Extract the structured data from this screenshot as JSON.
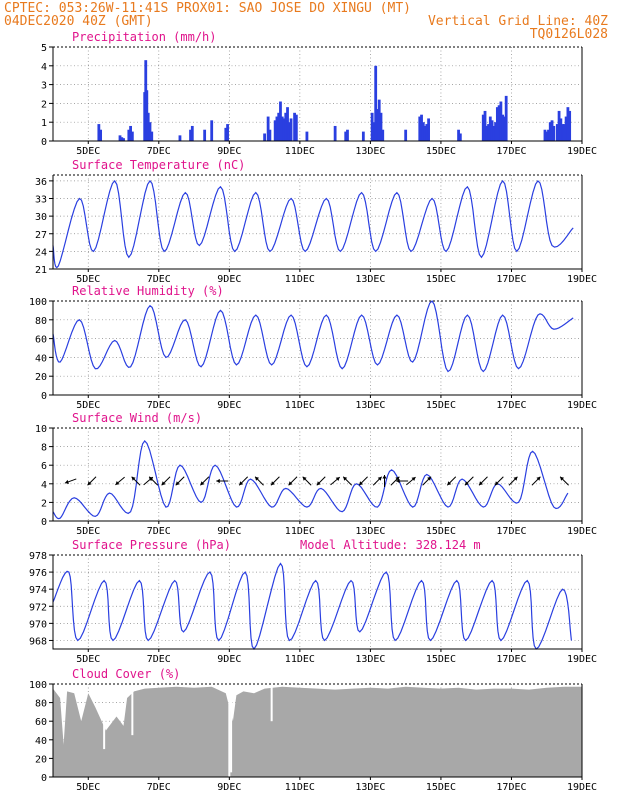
{
  "header": {
    "line1_left": "CPTEC:  053:26W-11:41S   PROX01: SAO JOSE DO XINGU (MT)",
    "line2_left": "04DEC2020 40Z (GMT)",
    "line2_right": "Vertical Grid Line: 40Z",
    "line3_right": "TQ0126L028",
    "model_altitude": "Model Altitude: 328.124 m"
  },
  "colors": {
    "header_text": "#e87a1e",
    "panel_title": "#e0148c",
    "series_line": "#2a3fe0",
    "cloud_fill": "#a8a8a8",
    "wind_arrow": "#000000"
  },
  "x_axis": {
    "start": 4.0,
    "end": 19.0,
    "unit": "days (DEC 2020)",
    "tick_values": [
      5,
      7,
      9,
      11,
      13,
      15,
      17,
      19
    ],
    "tick_labels": [
      "5DEC",
      "7DEC",
      "9DEC",
      "11DEC",
      "13DEC",
      "15DEC",
      "17DEC",
      "19DEC"
    ]
  },
  "chart_data": [
    {
      "id": "precip",
      "type": "bar",
      "title": "Precipitation (mm/h)",
      "ylim": [
        0,
        5
      ],
      "yticks": [
        0,
        1,
        2,
        3,
        4,
        5
      ],
      "grid": true,
      "bars": [
        [
          5.3,
          0.9
        ],
        [
          5.35,
          0.6
        ],
        [
          5.9,
          0.3
        ],
        [
          5.95,
          0.2
        ],
        [
          6.0,
          0.15
        ],
        [
          6.15,
          0.6
        ],
        [
          6.2,
          0.8
        ],
        [
          6.25,
          0.5
        ],
        [
          6.6,
          2.6
        ],
        [
          6.63,
          4.3
        ],
        [
          6.66,
          2.7
        ],
        [
          6.7,
          1.5
        ],
        [
          6.75,
          1.0
        ],
        [
          6.8,
          0.5
        ],
        [
          7.6,
          0.3
        ],
        [
          7.9,
          0.6
        ],
        [
          7.95,
          0.8
        ],
        [
          8.3,
          0.6
        ],
        [
          8.5,
          1.1
        ],
        [
          8.9,
          0.7
        ],
        [
          8.95,
          0.9
        ],
        [
          10.0,
          0.4
        ],
        [
          10.1,
          1.3
        ],
        [
          10.15,
          0.6
        ],
        [
          10.3,
          1.1
        ],
        [
          10.35,
          1.3
        ],
        [
          10.4,
          1.5
        ],
        [
          10.45,
          2.1
        ],
        [
          10.5,
          1.3
        ],
        [
          10.55,
          1.2
        ],
        [
          10.6,
          1.5
        ],
        [
          10.65,
          1.8
        ],
        [
          10.7,
          1.0
        ],
        [
          10.75,
          1.2
        ],
        [
          10.85,
          1.5
        ],
        [
          10.9,
          1.4
        ],
        [
          11.2,
          0.5
        ],
        [
          12.0,
          0.8
        ],
        [
          12.3,
          0.5
        ],
        [
          12.35,
          0.6
        ],
        [
          12.8,
          0.5
        ],
        [
          13.05,
          1.5
        ],
        [
          13.1,
          1.0
        ],
        [
          13.15,
          4.0
        ],
        [
          13.2,
          1.7
        ],
        [
          13.25,
          2.2
        ],
        [
          13.3,
          1.5
        ],
        [
          13.35,
          0.6
        ],
        [
          14.0,
          0.6
        ],
        [
          14.4,
          1.3
        ],
        [
          14.45,
          1.4
        ],
        [
          14.5,
          1.0
        ],
        [
          14.55,
          0.8
        ],
        [
          14.6,
          0.9
        ],
        [
          14.65,
          1.2
        ],
        [
          15.5,
          0.6
        ],
        [
          15.55,
          0.4
        ],
        [
          16.2,
          1.4
        ],
        [
          16.25,
          1.6
        ],
        [
          16.3,
          0.8
        ],
        [
          16.35,
          0.9
        ],
        [
          16.4,
          1.3
        ],
        [
          16.45,
          1.1
        ],
        [
          16.5,
          0.8
        ],
        [
          16.55,
          1.0
        ],
        [
          16.6,
          1.8
        ],
        [
          16.65,
          1.9
        ],
        [
          16.7,
          2.1
        ],
        [
          16.75,
          1.4
        ],
        [
          16.8,
          1.3
        ],
        [
          16.85,
          2.4
        ],
        [
          17.95,
          0.6
        ],
        [
          18.0,
          0.5
        ],
        [
          18.05,
          0.6
        ],
        [
          18.1,
          1.0
        ],
        [
          18.15,
          1.1
        ],
        [
          18.2,
          0.8
        ],
        [
          18.3,
          0.9
        ],
        [
          18.35,
          1.6
        ],
        [
          18.4,
          1.2
        ],
        [
          18.45,
          0.9
        ],
        [
          18.5,
          0.9
        ],
        [
          18.55,
          1.3
        ],
        [
          18.6,
          1.8
        ],
        [
          18.65,
          1.6
        ]
      ]
    },
    {
      "id": "temp",
      "type": "line",
      "title": "Surface Temperature (nC)",
      "ylim": [
        21,
        37
      ],
      "yticks": [
        21,
        24,
        27,
        30,
        33,
        36
      ],
      "grid": true,
      "min_time_frac": 0.15,
      "peak_time_frac": 0.75,
      "x_start": 4.0,
      "y_start": 25.0,
      "daily": [
        [
          4,
          21.5,
          33.0
        ],
        [
          5,
          24.0,
          36.0
        ],
        [
          6,
          23.0,
          36.0
        ],
        [
          7,
          24.0,
          34.0
        ],
        [
          8,
          25.0,
          35.0
        ],
        [
          9,
          24.0,
          34.0
        ],
        [
          10,
          24.0,
          33.0
        ],
        [
          11,
          24.0,
          33.0
        ],
        [
          12,
          24.0,
          34.0
        ],
        [
          13,
          24.0,
          34.0
        ],
        [
          14,
          24.0,
          33.0
        ],
        [
          15,
          24.0,
          35.0
        ],
        [
          16,
          23.0,
          36.0
        ],
        [
          17,
          24.0,
          36.0
        ],
        [
          18,
          25.0,
          28.0
        ]
      ]
    },
    {
      "id": "rh",
      "type": "line",
      "title": "Relative Humidity (%)",
      "ylim": [
        0,
        100
      ],
      "yticks": [
        0,
        20,
        40,
        60,
        80,
        100
      ],
      "grid": true,
      "min_time_frac": 0.75,
      "peak_time_frac": 0.2,
      "x_start": 4.0,
      "y_start": 65.0,
      "daily": [
        [
          4,
          80.0,
          35.0
        ],
        [
          5,
          58.0,
          28.0
        ],
        [
          6,
          95.0,
          30.0
        ],
        [
          7,
          80.0,
          40.0
        ],
        [
          8,
          90.0,
          30.0
        ],
        [
          9,
          85.0,
          32.0
        ],
        [
          10,
          85.0,
          32.0
        ],
        [
          11,
          85.0,
          30.0
        ],
        [
          12,
          85.0,
          28.0
        ],
        [
          13,
          85.0,
          32.0
        ],
        [
          14,
          100.0,
          35.0
        ],
        [
          15,
          85.0,
          25.0
        ],
        [
          16,
          85.0,
          25.0
        ],
        [
          17,
          85.0,
          28.0
        ],
        [
          18,
          82.0,
          70.0
        ]
      ]
    },
    {
      "id": "wind",
      "type": "line",
      "title": "Surface Wind (m/s)",
      "ylim": [
        0,
        10
      ],
      "yticks": [
        0,
        2,
        4,
        6,
        8,
        10
      ],
      "grid": true,
      "min_time_frac": 0.2,
      "peak_time_frac": 0.6,
      "x_start": 4.0,
      "y_start": 1.0,
      "daily": [
        [
          4,
          0.3,
          2.5
        ],
        [
          5,
          0.5,
          3.0
        ],
        [
          6,
          1.0,
          8.6
        ],
        [
          7,
          1.5,
          6.0
        ],
        [
          8,
          2.0,
          6.0
        ],
        [
          9,
          1.5,
          4.5
        ],
        [
          10,
          1.5,
          3.5
        ],
        [
          11,
          1.5,
          3.5
        ],
        [
          12,
          1.0,
          4.0
        ],
        [
          13,
          1.5,
          5.5
        ],
        [
          14,
          1.5,
          5.0
        ],
        [
          15,
          1.5,
          4.5
        ],
        [
          16,
          1.5,
          4.0
        ],
        [
          17,
          2.0,
          7.5
        ],
        [
          18,
          1.5,
          3.0
        ]
      ],
      "arrows_y": 4.3,
      "arrows": [
        [
          4.5,
          200
        ],
        [
          5.1,
          225
        ],
        [
          5.9,
          220
        ],
        [
          6.35,
          135
        ],
        [
          6.7,
          40
        ],
        [
          6.85,
          135
        ],
        [
          7.2,
          225
        ],
        [
          7.6,
          225
        ],
        [
          8.3,
          225
        ],
        [
          8.8,
          180
        ],
        [
          9.4,
          225
        ],
        [
          9.85,
          135
        ],
        [
          10.3,
          225
        ],
        [
          10.8,
          225
        ],
        [
          11.2,
          135
        ],
        [
          11.6,
          225
        ],
        [
          12.0,
          40
        ],
        [
          12.35,
          135
        ],
        [
          12.8,
          225
        ],
        [
          13.2,
          45
        ],
        [
          13.4,
          90
        ],
        [
          13.7,
          45
        ],
        [
          13.9,
          180
        ],
        [
          14.15,
          40
        ],
        [
          14.6,
          45
        ],
        [
          15.3,
          225
        ],
        [
          15.8,
          225
        ],
        [
          16.2,
          225
        ],
        [
          16.65,
          225
        ],
        [
          17.05,
          45
        ],
        [
          17.7,
          45
        ],
        [
          18.5,
          135
        ]
      ]
    },
    {
      "id": "press",
      "type": "line",
      "title": "Surface Pressure (hPa)",
      "ylim": [
        967,
        978
      ],
      "yticks": [
        968,
        970,
        972,
        974,
        976,
        978
      ],
      "grid": true,
      "min_time_frac": 0.7,
      "peak_time_frac": 0.45,
      "x_start": 4.0,
      "y_start": 972.5,
      "daily": [
        [
          4,
          968.0,
          976.0
        ],
        [
          5,
          968.0,
          975.0
        ],
        [
          6,
          968.0,
          975.0
        ],
        [
          7,
          969.0,
          975.0
        ],
        [
          8,
          968.0,
          976.0
        ],
        [
          9,
          967.0,
          976.0
        ],
        [
          10,
          968.0,
          977.0
        ],
        [
          11,
          968.0,
          975.0
        ],
        [
          12,
          969.0,
          975.0
        ],
        [
          13,
          968.0,
          976.0
        ],
        [
          14,
          968.0,
          975.0
        ],
        [
          15,
          968.0,
          975.0
        ],
        [
          16,
          968.0,
          975.0
        ],
        [
          17,
          967.0,
          975.0
        ],
        [
          18,
          968.0,
          974.0
        ]
      ]
    },
    {
      "id": "cloud",
      "type": "area",
      "title": "Cloud Cover (%)",
      "ylim": [
        0,
        100
      ],
      "yticks": [
        0,
        20,
        40,
        60,
        80,
        100
      ],
      "grid": true,
      "points": [
        [
          4.0,
          95
        ],
        [
          4.2,
          85
        ],
        [
          4.3,
          35
        ],
        [
          4.4,
          92
        ],
        [
          4.6,
          90
        ],
        [
          4.8,
          60
        ],
        [
          5.0,
          90
        ],
        [
          5.2,
          75
        ],
        [
          5.5,
          50
        ],
        [
          5.8,
          65
        ],
        [
          6.0,
          55
        ],
        [
          6.1,
          85
        ],
        [
          6.3,
          92
        ],
        [
          6.6,
          95
        ],
        [
          7.0,
          96
        ],
        [
          7.5,
          97
        ],
        [
          8.0,
          96
        ],
        [
          8.5,
          97
        ],
        [
          8.9,
          90
        ],
        [
          9.0,
          75
        ],
        [
          9.1,
          60
        ],
        [
          9.2,
          88
        ],
        [
          9.4,
          92
        ],
        [
          9.7,
          90
        ],
        [
          10.0,
          95
        ],
        [
          10.5,
          97
        ],
        [
          11.0,
          96
        ],
        [
          11.5,
          95
        ],
        [
          12.0,
          94
        ],
        [
          12.5,
          95
        ],
        [
          13.0,
          96
        ],
        [
          13.5,
          95
        ],
        [
          14.0,
          97
        ],
        [
          14.5,
          96
        ],
        [
          15.0,
          95
        ],
        [
          15.5,
          96
        ],
        [
          16.0,
          94
        ],
        [
          16.5,
          95
        ],
        [
          17.0,
          95
        ],
        [
          17.5,
          94
        ],
        [
          18.0,
          96
        ],
        [
          18.5,
          97
        ],
        [
          19.0,
          97
        ]
      ],
      "dips": [
        [
          5.45,
          30
        ],
        [
          6.25,
          45
        ],
        [
          9.0,
          0
        ],
        [
          9.05,
          5
        ],
        [
          10.2,
          60
        ]
      ]
    }
  ]
}
